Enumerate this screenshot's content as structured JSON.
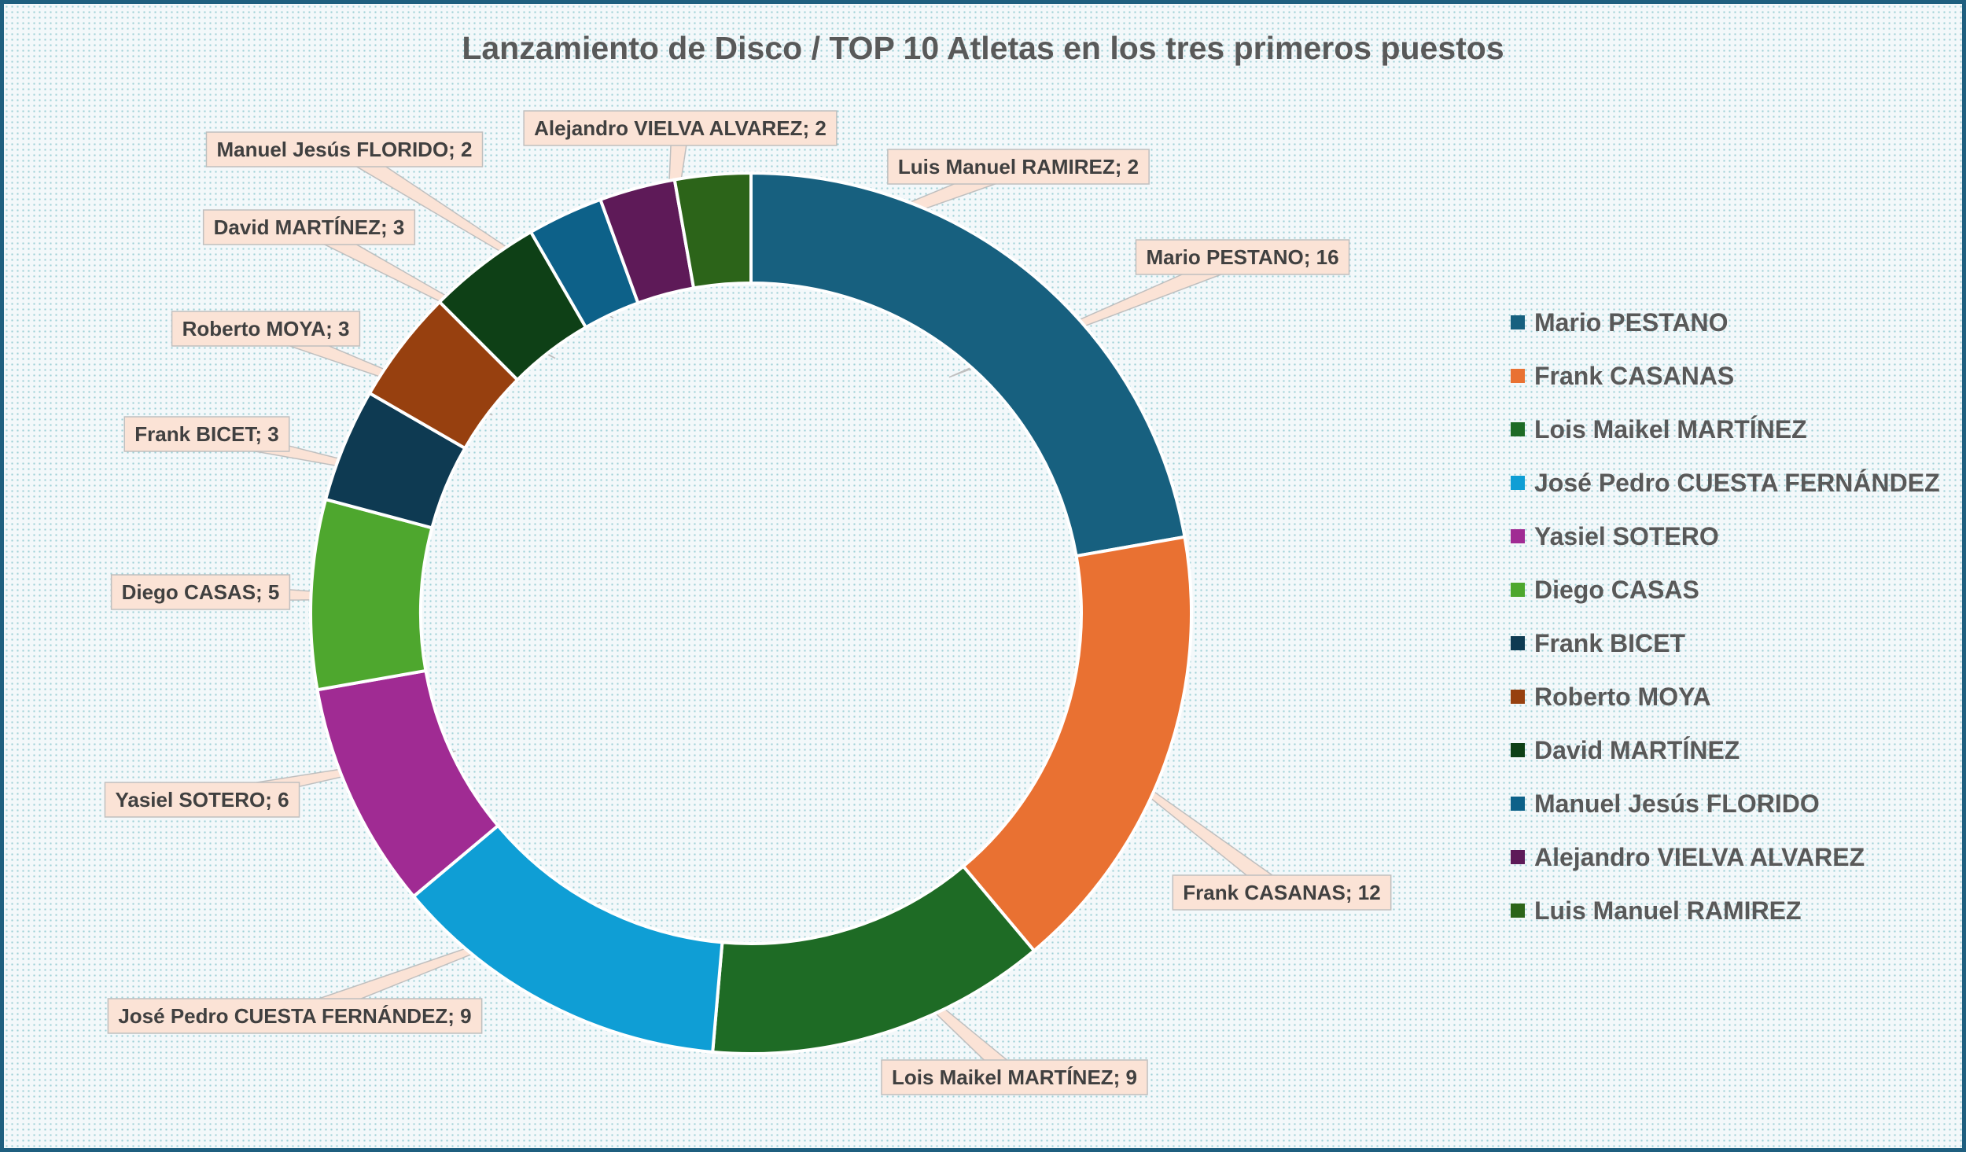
{
  "chart_data": {
    "type": "pie",
    "variant": "doughnut",
    "title": "Lanzamiento de Disco / TOP 10 Atletas en los tres primeros puestos",
    "legend_position": "right",
    "series": [
      {
        "name": "Mario PESTANO",
        "value": 16,
        "color": "#17607f",
        "label": "Mario PESTANO; 16"
      },
      {
        "name": "Frank CASANAS",
        "value": 12,
        "color": "#e97132",
        "label": "Frank CASANAS; 12"
      },
      {
        "name": "Lois Maikel MARTÍNEZ",
        "value": 9,
        "color": "#1e6b25",
        "label": "Lois Maikel MARTÍNEZ; 9"
      },
      {
        "name": "José Pedro CUESTA FERNÁNDEZ",
        "value": 9,
        "color": "#0f9ed5",
        "label": "José Pedro CUESTA FERNÁNDEZ; 9"
      },
      {
        "name": "Yasiel SOTERO",
        "value": 6,
        "color": "#a02b93",
        "label": "Yasiel SOTERO; 6"
      },
      {
        "name": "Diego CASAS",
        "value": 5,
        "color": "#4ea72e",
        "label": "Diego CASAS; 5"
      },
      {
        "name": "Frank BICET",
        "value": 3,
        "color": "#0e3a52",
        "label": "Frank BICET; 3"
      },
      {
        "name": "Roberto MOYA",
        "value": 3,
        "color": "#97400f",
        "label": "Roberto MOYA; 3"
      },
      {
        "name": "David MARTÍNEZ",
        "value": 3,
        "color": "#0e4016",
        "label": "David MARTÍNEZ; 3"
      },
      {
        "name": "Manuel Jesús FLORIDO",
        "value": 2,
        "color": "#0d6189",
        "label": "Manuel Jesús FLORIDO; 2"
      },
      {
        "name": "Alejandro VIELVA ALVAREZ",
        "value": 2,
        "color": "#5e1a58",
        "label": "Alejandro VIELVA ALVAREZ; 2"
      },
      {
        "name": "Luis Manuel RAMIREZ",
        "value": 2,
        "color": "#2c6419",
        "label": "Luis Manuel RAMIREZ; 2"
      }
    ]
  }
}
